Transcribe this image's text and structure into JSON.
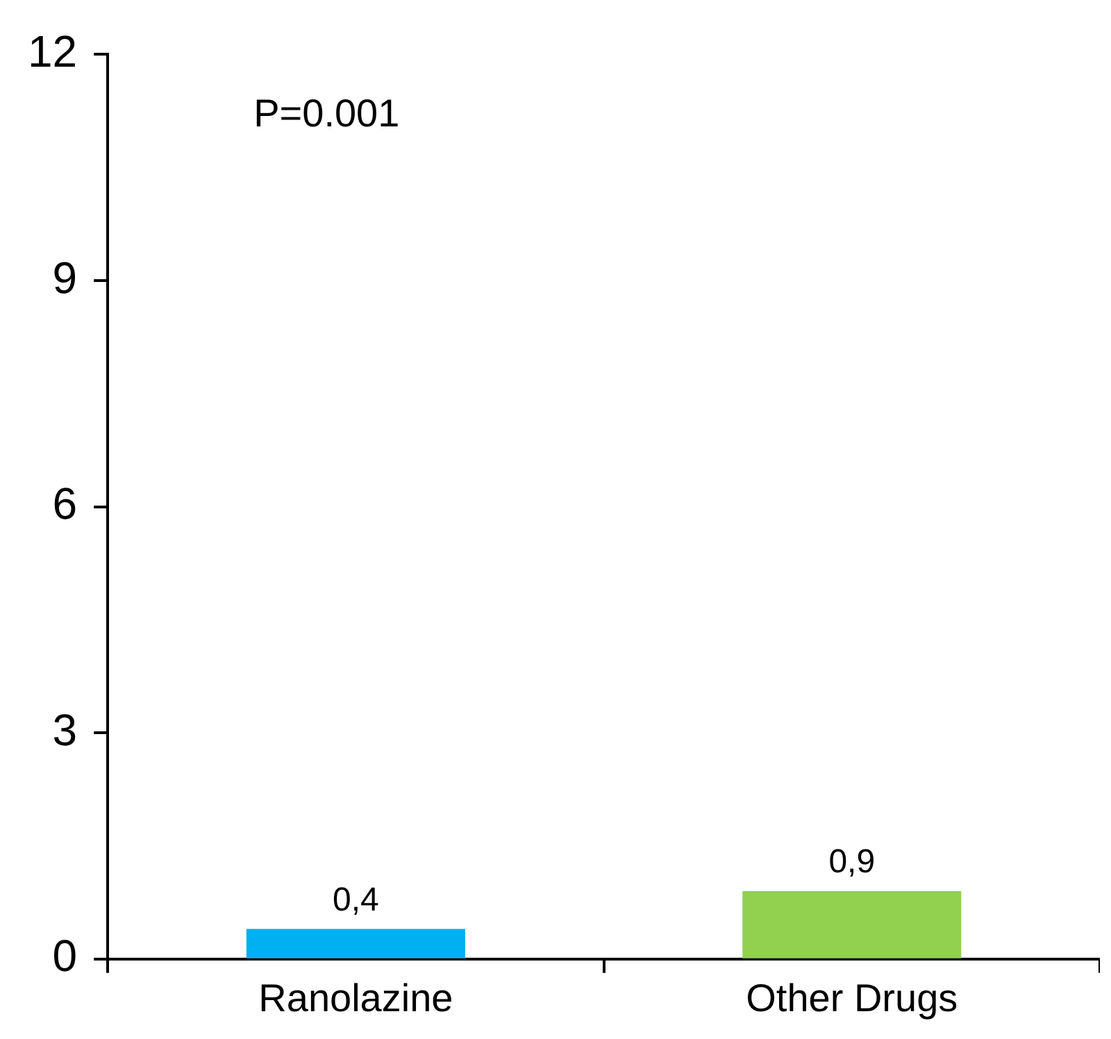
{
  "chart_data": {
    "type": "bar",
    "categories": [
      "Ranolazine",
      "Other Drugs"
    ],
    "values": [
      0.4,
      0.9
    ],
    "colors": [
      "#00b0f0",
      "#92d050"
    ],
    "value_labels": [
      "0,4",
      "0,9"
    ],
    "ylim": [
      0,
      12
    ],
    "yticks": [
      0,
      3,
      6,
      9,
      12
    ],
    "grid": false,
    "legend": false,
    "annotations": [
      "P=0.001"
    ]
  }
}
